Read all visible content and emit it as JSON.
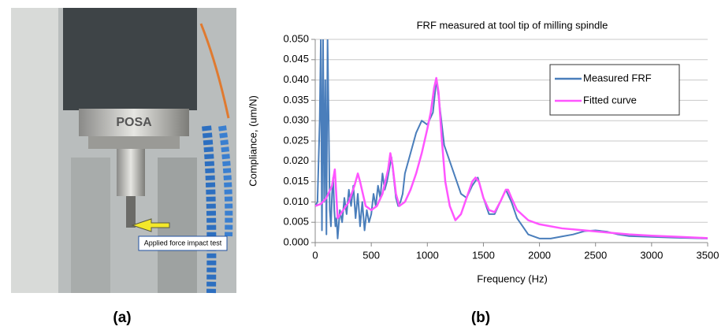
{
  "figure": {
    "photo": {
      "brand": "POSA",
      "annotation": "Applied force impact test"
    },
    "panel_labels": [
      "(a)",
      "(b)"
    ]
  },
  "chart_data": {
    "type": "line",
    "title": "FRF measured at tool tip of milling spindle",
    "x_label": "Frequency (Hz)",
    "y_label": "Compliance, (um/N)",
    "xlim": [
      0,
      3500
    ],
    "xticks": [
      0,
      500,
      1000,
      1500,
      2000,
      2500,
      3000,
      3500
    ],
    "ylim": [
      0,
      0.05
    ],
    "yticks": [
      {
        "value": 0,
        "label": "0.000"
      },
      {
        "value": 0.005,
        "label": "0.005"
      },
      {
        "value": 0.01,
        "label": "0.010"
      },
      {
        "value": 0.015,
        "label": "0.015"
      },
      {
        "value": 0.02,
        "label": "0.020"
      },
      {
        "value": 0.025,
        "label": "0.025"
      },
      {
        "value": 0.03,
        "label": "0.030"
      },
      {
        "value": 0.035,
        "label": "0.035"
      },
      {
        "value": 0.04,
        "label": "0.040"
      },
      {
        "value": 0.045,
        "label": "0.045"
      },
      {
        "value": 0.05,
        "label": "0.050"
      }
    ],
    "grid": true,
    "legend": "upper right",
    "series": [
      {
        "name": "Measured FRF",
        "color": "#4a7ebb",
        "x": [
          0,
          20,
          40,
          50,
          60,
          70,
          80,
          90,
          100,
          110,
          120,
          130,
          140,
          150,
          160,
          170,
          180,
          190,
          200,
          220,
          240,
          260,
          280,
          300,
          320,
          340,
          360,
          380,
          400,
          420,
          440,
          460,
          480,
          500,
          520,
          540,
          560,
          580,
          600,
          620,
          640,
          660,
          680,
          700,
          720,
          740,
          760,
          780,
          800,
          850,
          900,
          950,
          1000,
          1050,
          1080,
          1100,
          1150,
          1200,
          1250,
          1300,
          1350,
          1400,
          1450,
          1500,
          1550,
          1600,
          1650,
          1700,
          1750,
          1800,
          1900,
          2000,
          2100,
          2200,
          2300,
          2400,
          2500,
          2600,
          2700,
          2800,
          3000,
          3200,
          3500
        ],
        "values": [
          0.009,
          0.01,
          0.03,
          0.05,
          0.003,
          0.05,
          0.01,
          0.04,
          0.002,
          0.05,
          0.03,
          0.008,
          0.004,
          0.012,
          0.016,
          0.008,
          0.004,
          0.006,
          0.001,
          0.008,
          0.005,
          0.011,
          0.007,
          0.013,
          0.009,
          0.014,
          0.006,
          0.012,
          0.004,
          0.01,
          0.003,
          0.008,
          0.005,
          0.007,
          0.012,
          0.009,
          0.014,
          0.011,
          0.017,
          0.013,
          0.015,
          0.018,
          0.021,
          0.016,
          0.011,
          0.009,
          0.01,
          0.012,
          0.017,
          0.022,
          0.027,
          0.03,
          0.029,
          0.032,
          0.04,
          0.036,
          0.024,
          0.02,
          0.016,
          0.012,
          0.011,
          0.014,
          0.016,
          0.011,
          0.007,
          0.007,
          0.01,
          0.013,
          0.01,
          0.006,
          0.002,
          0.001,
          0.001,
          0.0015,
          0.002,
          0.0028,
          0.003,
          0.0027,
          0.002,
          0.0016,
          0.0014,
          0.0012,
          0.001
        ]
      },
      {
        "name": "Fitted curve",
        "color": "#ff55ff",
        "x": [
          0,
          50,
          100,
          150,
          175,
          200,
          250,
          300,
          350,
          380,
          400,
          450,
          500,
          550,
          600,
          650,
          670,
          690,
          720,
          750,
          800,
          850,
          900,
          950,
          1000,
          1030,
          1060,
          1080,
          1100,
          1130,
          1160,
          1200,
          1250,
          1300,
          1350,
          1400,
          1430,
          1460,
          1500,
          1550,
          1600,
          1650,
          1700,
          1720,
          1750,
          1800,
          1900,
          2000,
          2200,
          2400,
          2600,
          2800,
          3000,
          3250,
          3500
        ],
        "values": [
          0.009,
          0.0095,
          0.011,
          0.014,
          0.018,
          0.006,
          0.008,
          0.01,
          0.014,
          0.017,
          0.015,
          0.009,
          0.008,
          0.009,
          0.012,
          0.018,
          0.022,
          0.019,
          0.012,
          0.009,
          0.01,
          0.013,
          0.017,
          0.022,
          0.028,
          0.032,
          0.038,
          0.0405,
          0.037,
          0.025,
          0.015,
          0.009,
          0.0055,
          0.007,
          0.011,
          0.015,
          0.016,
          0.015,
          0.011,
          0.008,
          0.0075,
          0.01,
          0.013,
          0.013,
          0.011,
          0.008,
          0.0055,
          0.0045,
          0.0035,
          0.003,
          0.0025,
          0.002,
          0.0017,
          0.0014,
          0.0011
        ]
      }
    ]
  }
}
